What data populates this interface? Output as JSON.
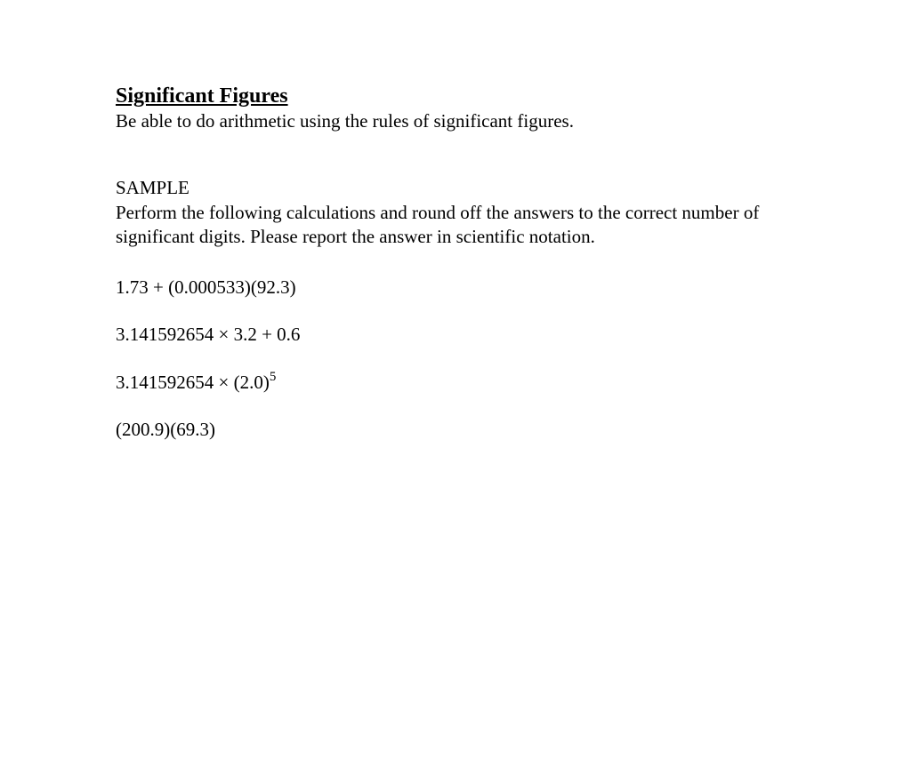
{
  "doc": {
    "heading": "Significant Figures",
    "subtitle": "Be able to do arithmetic using the rules of significant figures.",
    "sample_label": "SAMPLE",
    "instructions": "Perform the following calculations and round off the answers to the correct number of significant digits. Please report the answer in scientific notation.",
    "problems": {
      "p1": "1.73 + (0.000533)(92.3)",
      "p2": "3.141592654 × 3.2 + 0.6",
      "p3_base": "3.141592654 × (2.0)",
      "p3_exp": "5",
      "p4": "(200.9)(69.3)"
    },
    "colors": {
      "background": "#ffffff",
      "text": "#000000"
    },
    "typography": {
      "font_family": "Times New Roman",
      "heading_fontsize": 24,
      "body_fontsize": 21
    }
  }
}
